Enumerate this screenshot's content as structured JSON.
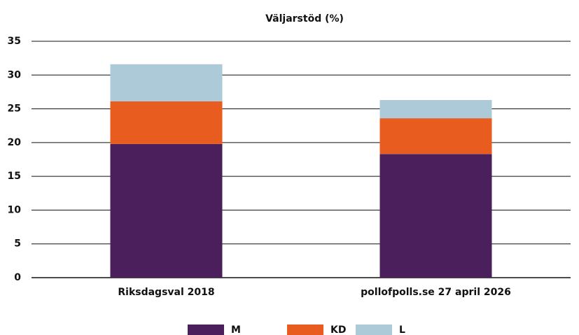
{
  "chart_data": {
    "type": "stacked_bar",
    "title": "Väljarstöd (%)",
    "categories": [
      "Riksdagsval 2018",
      "pollofpolls.se 27 april 2026"
    ],
    "series": [
      {
        "name": "M",
        "color": "#4a1f5c",
        "values": [
          19.8,
          18.3
        ]
      },
      {
        "name": "KD",
        "color": "#e85d1f",
        "values": [
          6.3,
          5.3
        ]
      },
      {
        "name": "L",
        "color": "#adcad8",
        "values": [
          5.5,
          2.7
        ]
      }
    ],
    "ylim": [
      0,
      35
    ],
    "yticks": [
      0,
      5,
      10,
      15,
      20,
      25,
      30,
      35
    ],
    "grid": true,
    "legend": "bottom"
  }
}
